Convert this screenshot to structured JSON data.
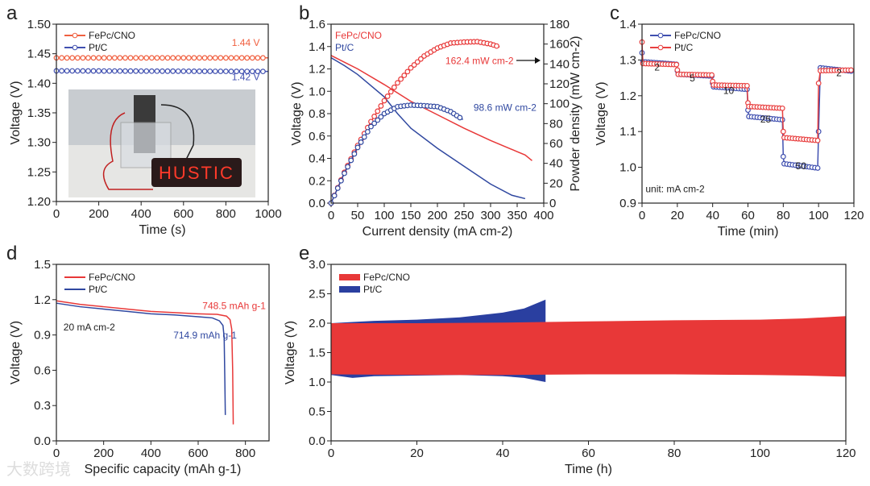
{
  "watermark": "大数跨境",
  "chart_data": [
    {
      "panel": "a",
      "type": "line",
      "xlabel": "Time (s)",
      "ylabel": "Voltage (V)",
      "xlim": [
        0,
        1000
      ],
      "ylim": [
        1.2,
        1.5
      ],
      "xticks": [
        0,
        200,
        400,
        600,
        800,
        1000
      ],
      "yticks": [
        1.2,
        1.25,
        1.3,
        1.35,
        1.4,
        1.45,
        1.5
      ],
      "ytick_labels": [
        "1.20",
        "1.25",
        "1.30",
        "1.35",
        "1.40",
        "1.45",
        "1.50"
      ],
      "legend": "top-left",
      "inset_photo_text": "HUSTIC",
      "series": [
        {
          "name": "FePc/CNO",
          "color": "#f06040",
          "x": [
            0,
            1000
          ],
          "y": [
            1.443,
            1.443
          ],
          "markers": true
        },
        {
          "name": "Pt/C",
          "color": "#4050b0",
          "x": [
            0,
            1000
          ],
          "y": [
            1.421,
            1.42
          ],
          "markers": true
        }
      ],
      "annotations": [
        {
          "text": "1.44 V",
          "x": 960,
          "y": 1.463,
          "color": "#f06040"
        },
        {
          "text": "1.42 V",
          "x": 960,
          "y": 1.405,
          "color": "#4050b0"
        }
      ]
    },
    {
      "panel": "b",
      "type": "line",
      "xlabel": "Current density (mA cm-2)",
      "ylabel": "Voltage (V)",
      "y2label": "Powder density (mW cm-2)",
      "xlim": [
        0,
        400
      ],
      "ylim": [
        0,
        1.6
      ],
      "y2lim": [
        0,
        180
      ],
      "xticks": [
        0,
        50,
        100,
        150,
        200,
        250,
        300,
        350,
        400
      ],
      "yticks": [
        0,
        0.2,
        0.4,
        0.6,
        0.8,
        1.0,
        1.2,
        1.4,
        1.6
      ],
      "ytick_labels": [
        "0.0",
        "0.2",
        "0.4",
        "0.6",
        "0.8",
        "1.0",
        "1.2",
        "1.4",
        "1.6"
      ],
      "y2ticks": [
        0,
        20,
        40,
        60,
        80,
        100,
        120,
        140,
        160,
        180
      ],
      "legend": "top-left",
      "series": [
        {
          "name": "FePc/CNO",
          "color": "#e83838",
          "axis": "left",
          "x": [
            0,
            25,
            50,
            100,
            150,
            200,
            250,
            300,
            350,
            365,
            378
          ],
          "y": [
            1.32,
            1.26,
            1.2,
            1.06,
            0.91,
            0.79,
            0.67,
            0.56,
            0.46,
            0.43,
            0.38
          ]
        },
        {
          "name": "Pt/C",
          "color": "#3048a0",
          "axis": "left",
          "x": [
            0,
            25,
            50,
            100,
            125,
            150,
            200,
            250,
            300,
            340,
            365
          ],
          "y": [
            1.3,
            1.23,
            1.15,
            0.95,
            0.8,
            0.67,
            0.49,
            0.33,
            0.17,
            0.07,
            0.04
          ]
        },
        {
          "name": "FePc/CNO power",
          "color": "#e83838",
          "axis": "right",
          "markers": true,
          "x": [
            0,
            25,
            50,
            75,
            100,
            125,
            150,
            175,
            200,
            225,
            250,
            275,
            300,
            317
          ],
          "y": [
            0,
            31,
            58,
            82,
            103,
            121,
            136,
            148,
            156,
            161,
            162,
            162.4,
            160,
            157
          ]
        },
        {
          "name": "Pt/C power",
          "color": "#3048a0",
          "axis": "right",
          "markers": true,
          "x": [
            0,
            25,
            50,
            75,
            100,
            125,
            150,
            175,
            200,
            225,
            248
          ],
          "y": [
            0,
            30,
            56,
            77,
            90,
            97,
            98.6,
            98,
            97,
            92,
            84
          ]
        }
      ],
      "annotations": [
        {
          "text": "162.4 mW cm-2",
          "x": 215,
          "y2": 140,
          "color": "#e83838"
        },
        {
          "text": "98.6 mW cm-2",
          "x": 268,
          "y2": 93,
          "color": "#3048a0"
        }
      ],
      "legend_labels": [
        "FePc/CNO",
        "Pt/C"
      ]
    },
    {
      "panel": "c",
      "type": "line",
      "xlabel": "Time (min)",
      "ylabel": "Voltage (V)",
      "xlim": [
        0,
        120
      ],
      "ylim": [
        0.9,
        1.4
      ],
      "xticks": [
        0,
        20,
        40,
        60,
        80,
        100,
        120
      ],
      "yticks": [
        0.9,
        1.0,
        1.1,
        1.2,
        1.3,
        1.4
      ],
      "ytick_labels": [
        "0.9",
        "1.0",
        "1.1",
        "1.2",
        "1.3",
        "1.4"
      ],
      "legend": "top-left",
      "series": [
        {
          "name": "FePc/CNO",
          "color": "#4050b0",
          "markers": true,
          "x": [
            0,
            0.5,
            19.5,
            20,
            20.5,
            39.5,
            40,
            40.5,
            59.5,
            60,
            60.5,
            79.5,
            80,
            80.5,
            99.5,
            100,
            101,
            120
          ],
          "y": [
            1.32,
            1.295,
            1.288,
            1.27,
            1.26,
            1.255,
            1.235,
            1.225,
            1.218,
            1.16,
            1.142,
            1.133,
            1.03,
            1.01,
            0.998,
            1.1,
            1.278,
            1.268
          ]
        },
        {
          "name": "Pt/C",
          "color": "#e84040",
          "markers": true,
          "x": [
            0,
            0.5,
            19.5,
            20,
            20.5,
            39.5,
            40,
            40.5,
            59.5,
            60,
            60.5,
            79.5,
            80,
            80.5,
            99.5,
            100,
            101,
            120
          ],
          "y": [
            1.35,
            1.29,
            1.287,
            1.272,
            1.26,
            1.258,
            1.24,
            1.23,
            1.228,
            1.18,
            1.17,
            1.165,
            1.1,
            1.083,
            1.075,
            1.235,
            1.27,
            1.272
          ]
        }
      ],
      "annotations": [
        {
          "text": "2",
          "x": 7,
          "y": 1.27
        },
        {
          "text": "5",
          "x": 27,
          "y": 1.24
        },
        {
          "text": "10",
          "x": 46,
          "y": 1.205
        },
        {
          "text": "25",
          "x": 67,
          "y": 1.125
        },
        {
          "text": "50",
          "x": 87,
          "y": 0.995
        },
        {
          "text": "2",
          "x": 110,
          "y": 1.255
        },
        {
          "text": "unit: mA cm-2",
          "x": 2,
          "y": 0.93
        }
      ],
      "legend_labels": [
        "FePc/CNO",
        "Pt/C"
      ]
    },
    {
      "panel": "d",
      "type": "line",
      "xlabel": "Specific capacity (mAh g-1)",
      "ylabel": "Voltage (V)",
      "xlim": [
        0,
        900
      ],
      "ylim": [
        0,
        1.5
      ],
      "xticks": [
        0,
        200,
        400,
        600,
        800
      ],
      "yticks": [
        0,
        0.3,
        0.6,
        0.9,
        1.2,
        1.5
      ],
      "ytick_labels": [
        "0.0",
        "0.3",
        "0.6",
        "0.9",
        "1.2",
        "1.5"
      ],
      "legend": "top-left",
      "series": [
        {
          "name": "FePc/CNO",
          "color": "#e83838",
          "x": [
            0,
            100,
            200,
            300,
            400,
            500,
            600,
            680,
            720,
            735,
            742,
            746,
            748.5
          ],
          "y": [
            1.19,
            1.16,
            1.14,
            1.12,
            1.1,
            1.09,
            1.08,
            1.075,
            1.06,
            1.03,
            0.95,
            0.6,
            0.14
          ]
        },
        {
          "name": "Pt/C",
          "color": "#3048a0",
          "x": [
            0,
            100,
            200,
            300,
            400,
            500,
            600,
            660,
            690,
            705,
            710,
            713,
            714.9
          ],
          "y": [
            1.17,
            1.14,
            1.12,
            1.1,
            1.08,
            1.07,
            1.055,
            1.045,
            1.02,
            0.98,
            0.88,
            0.5,
            0.22
          ]
        }
      ],
      "annotations": [
        {
          "text": "748.5 mAh g-1",
          "x": 618,
          "y": 1.12,
          "color": "#e83838"
        },
        {
          "text": "714.9 mAh g-1",
          "x": 495,
          "y": 0.87,
          "color": "#3048a0"
        },
        {
          "text": "20 mA cm-2",
          "x": 30,
          "y": 0.94
        }
      ],
      "legend_labels": [
        "FePc/CNO",
        "Pt/C"
      ]
    },
    {
      "panel": "e",
      "type": "area",
      "xlabel": "Time (h)",
      "ylabel": "Voltage (V)",
      "xlim": [
        0,
        120
      ],
      "ylim": [
        0,
        3.0
      ],
      "xticks": [
        0,
        20,
        40,
        60,
        80,
        100,
        120
      ],
      "yticks": [
        0,
        0.5,
        1.0,
        1.5,
        2.0,
        2.5,
        3.0
      ],
      "ytick_labels": [
        "0.0",
        "0.5",
        "1.0",
        "1.5",
        "2.0",
        "2.5",
        "3.0"
      ],
      "legend": "top-left",
      "series": [
        {
          "name": "Pt/C",
          "color": "#2a3fa0",
          "x": [
            0,
            5,
            10,
            20,
            30,
            40,
            45,
            50
          ],
          "upper": [
            2.0,
            2.02,
            2.04,
            2.06,
            2.1,
            2.18,
            2.25,
            2.4
          ],
          "lower": [
            1.12,
            1.07,
            1.1,
            1.11,
            1.12,
            1.1,
            1.07,
            1.0
          ]
        },
        {
          "name": "FePc/CNO",
          "color": "#e83838",
          "x": [
            0,
            20,
            40,
            60,
            80,
            100,
            110,
            120
          ],
          "upper": [
            2.0,
            2.0,
            2.01,
            2.03,
            2.05,
            2.06,
            2.08,
            2.12
          ],
          "lower": [
            1.13,
            1.12,
            1.12,
            1.13,
            1.13,
            1.12,
            1.11,
            1.09
          ]
        }
      ],
      "legend_labels": [
        "FePc/CNO",
        "Pt/C"
      ]
    }
  ],
  "panel_labels": [
    "a",
    "b",
    "c",
    "d",
    "e"
  ]
}
